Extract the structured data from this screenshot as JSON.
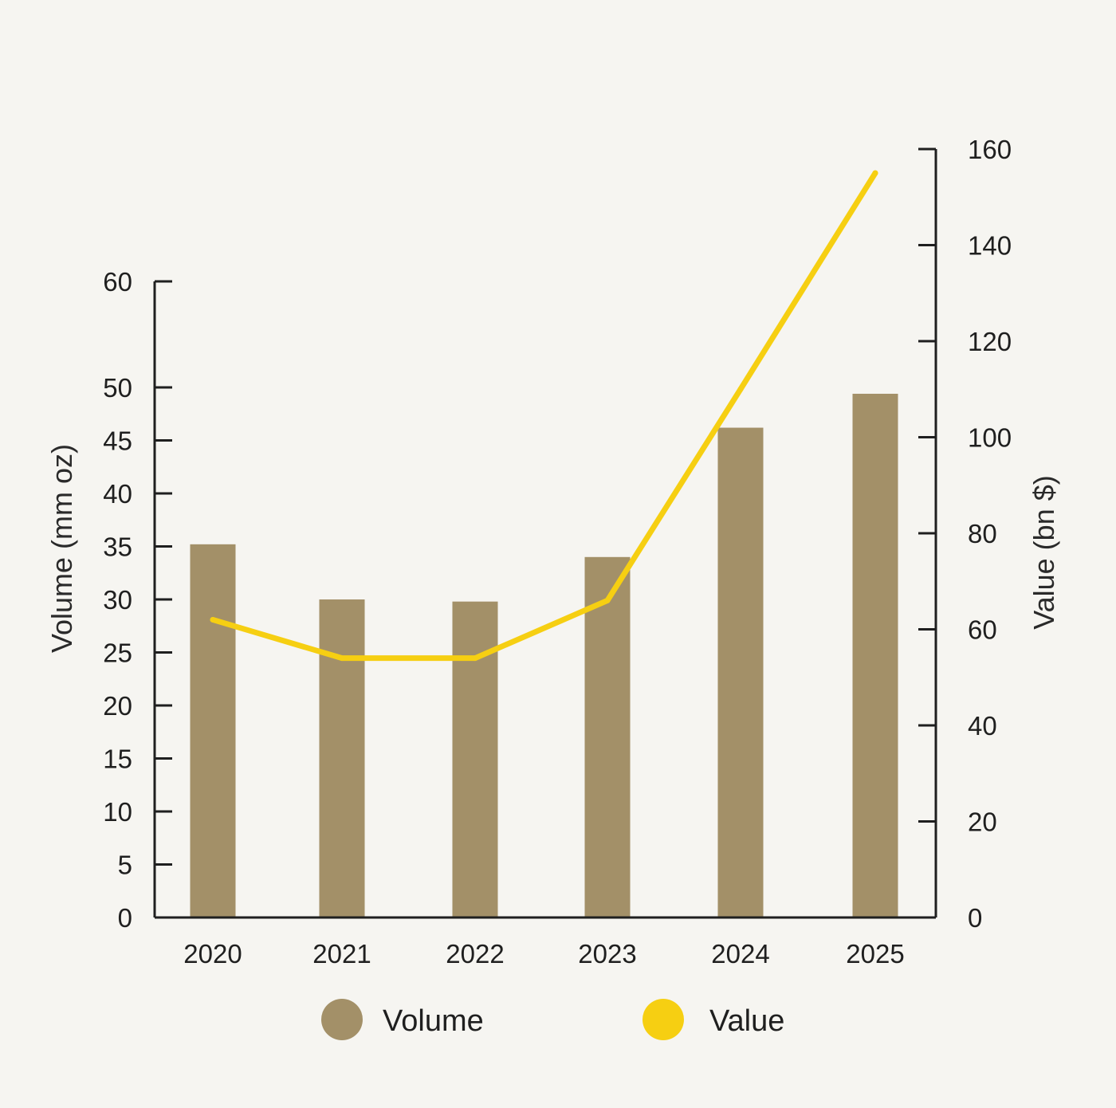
{
  "chart_data": {
    "type": "bar",
    "title": "",
    "categories": [
      "2020",
      "2021",
      "2022",
      "2023",
      "2024",
      "2025"
    ],
    "series": [
      {
        "name": "Volume",
        "type": "bar",
        "axis": "left",
        "color": "#a39068",
        "values": [
          35.2,
          30.0,
          29.8,
          34.0,
          46.2,
          49.4
        ]
      },
      {
        "name": "Value",
        "type": "line",
        "axis": "right",
        "color": "#f6cf12",
        "values": [
          62,
          54,
          54,
          66,
          110,
          155
        ]
      }
    ],
    "xlabel": "",
    "ylabel": "Volume (mm oz)",
    "ylabel_right": "Value (bn $)",
    "ylim": [
      0,
      60
    ],
    "ylim_right": [
      0,
      160
    ],
    "yticks": [
      "0",
      "5",
      "10",
      "15",
      "20",
      "25",
      "30",
      "35",
      "40",
      "45",
      "50",
      "60"
    ],
    "yticks_values": [
      0,
      5,
      10,
      15,
      20,
      25,
      30,
      35,
      40,
      45,
      50,
      60
    ],
    "yticks_right": [
      "0",
      "20",
      "40",
      "60",
      "80",
      "100",
      "120",
      "140",
      "160"
    ],
    "yticks_right_values": [
      0,
      20,
      40,
      60,
      80,
      100,
      120,
      140,
      160
    ],
    "legend": {
      "placement": "bottom-center",
      "items": [
        {
          "label": "Volume",
          "color": "#a39068"
        },
        {
          "label": "Value",
          "color": "#f6cf12"
        }
      ]
    },
    "axis_color": "#1f1f1f"
  }
}
